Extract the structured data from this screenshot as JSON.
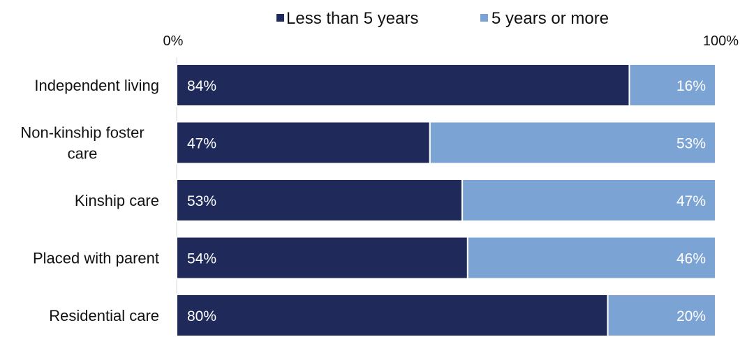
{
  "chart_data": {
    "type": "bar",
    "orientation": "horizontal",
    "stacked": true,
    "categories": [
      [
        "Independent living"
      ],
      [
        "Non-kinship foster",
        "care"
      ],
      [
        "Kinship care"
      ],
      [
        "Placed with parent"
      ],
      [
        "Residential care"
      ]
    ],
    "series": [
      {
        "name": "Less than 5 years",
        "color": "#1f2a5a",
        "values": [
          84,
          47,
          53,
          54,
          80
        ],
        "labels": [
          "84%",
          "47%",
          "53%",
          "54%",
          "80%"
        ]
      },
      {
        "name": "5 years or more",
        "color": "#7ba3d4",
        "values": [
          16,
          53,
          47,
          46,
          20
        ],
        "labels": [
          "16%",
          "53%",
          "47%",
          "46%",
          "20%"
        ]
      }
    ],
    "xlim": [
      0,
      100
    ],
    "tick_labels": [
      "0%",
      "100%"
    ],
    "legend_position": "top",
    "grid": false
  }
}
